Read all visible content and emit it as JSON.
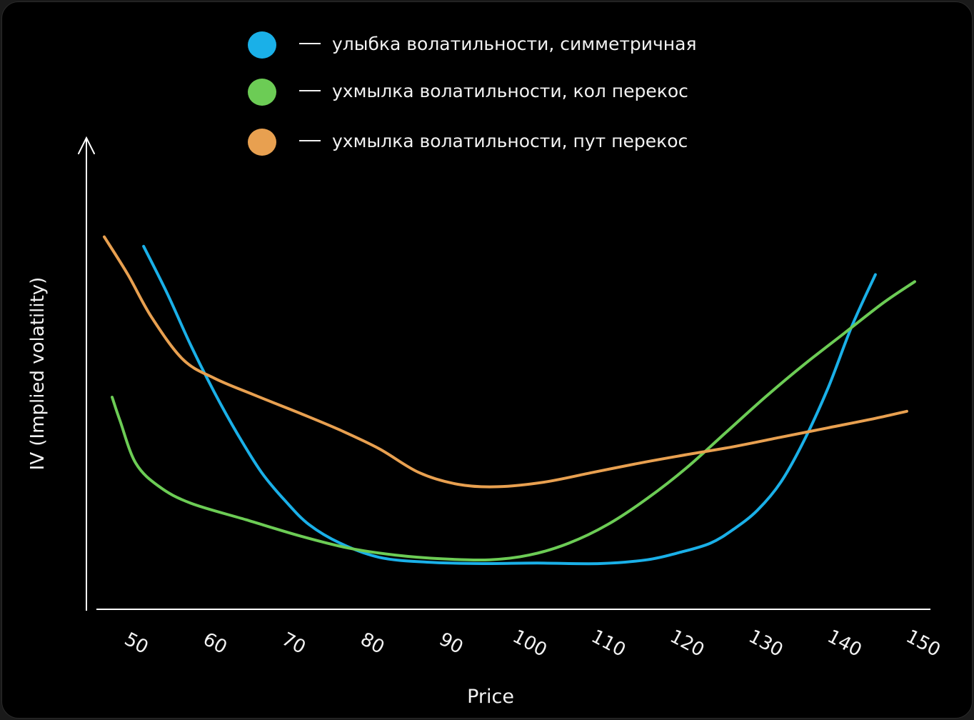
{
  "chart_data": {
    "type": "line",
    "xlabel": "Price",
    "ylabel": "IV (Implied volatility)",
    "x_ticks": [
      50,
      60,
      70,
      80,
      90,
      100,
      110,
      120,
      130,
      140,
      150
    ],
    "xlim": [
      46,
      152
    ],
    "ylim": [
      0,
      100
    ],
    "axis_color": "#ffffff",
    "legend_position": "top",
    "series": [
      {
        "name": "улыбка волатильности, симметричная",
        "color": "#1ab0e8",
        "points": [
          [
            52,
            77
          ],
          [
            55,
            67
          ],
          [
            58,
            56
          ],
          [
            61,
            46
          ],
          [
            64,
            37
          ],
          [
            67,
            29
          ],
          [
            70,
            23
          ],
          [
            73,
            18
          ],
          [
            77,
            14
          ],
          [
            82,
            11
          ],
          [
            88,
            10
          ],
          [
            95,
            9.7
          ],
          [
            102,
            9.8
          ],
          [
            110,
            9.7
          ],
          [
            116,
            10.5
          ],
          [
            120,
            12
          ],
          [
            124,
            14
          ],
          [
            127,
            17
          ],
          [
            130,
            21
          ],
          [
            133,
            27
          ],
          [
            136,
            36
          ],
          [
            139,
            47
          ],
          [
            142,
            60
          ],
          [
            145,
            71
          ]
        ]
      },
      {
        "name": "ухмылка волатильности, кол перекос",
        "color": "#6ccc55",
        "points": [
          [
            48,
            45
          ],
          [
            49,
            40
          ],
          [
            51,
            31
          ],
          [
            54,
            26
          ],
          [
            58,
            22.5
          ],
          [
            65,
            19
          ],
          [
            72,
            15.5
          ],
          [
            78,
            13
          ],
          [
            84,
            11.5
          ],
          [
            90,
            10.7
          ],
          [
            96,
            10.5
          ],
          [
            101,
            11.5
          ],
          [
            106,
            14
          ],
          [
            111,
            18
          ],
          [
            116,
            23.5
          ],
          [
            121,
            30
          ],
          [
            126,
            37.5
          ],
          [
            131,
            45
          ],
          [
            136,
            52
          ],
          [
            141,
            58.5
          ],
          [
            146,
            65
          ],
          [
            150,
            69.5
          ]
        ]
      },
      {
        "name": "ухмылка волатильности, пут перекос",
        "color": "#e8a050",
        "points": [
          [
            47,
            79
          ],
          [
            50,
            71
          ],
          [
            53,
            62
          ],
          [
            57,
            53
          ],
          [
            61,
            49
          ],
          [
            66,
            45.5
          ],
          [
            72,
            41.5
          ],
          [
            77,
            38
          ],
          [
            82,
            34
          ],
          [
            87,
            29
          ],
          [
            92,
            26.5
          ],
          [
            97,
            26
          ],
          [
            103,
            27
          ],
          [
            109,
            29
          ],
          [
            115,
            31
          ],
          [
            121,
            32.8
          ],
          [
            127,
            34.5
          ],
          [
            133,
            36.5
          ],
          [
            139,
            38.5
          ],
          [
            145,
            40.5
          ],
          [
            149,
            42
          ]
        ]
      }
    ]
  }
}
